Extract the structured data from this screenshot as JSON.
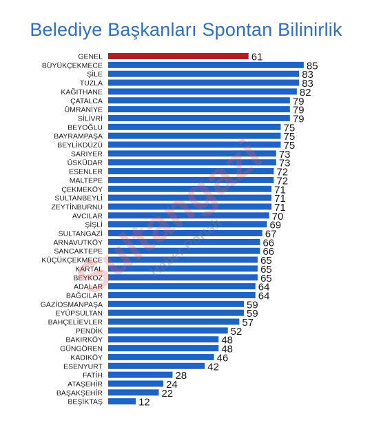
{
  "watermark": {
    "brand": "Sultangazi",
    "tagline": "Haber Portalı"
  },
  "colors": {
    "highlight": "#b01e22",
    "bar": "#1f63c4",
    "title": "#2e6fc0"
  },
  "chart_data": {
    "type": "bar",
    "orientation": "horizontal",
    "title": "Belediye Başkanları Spontan Bilinirlik",
    "xlabel": "",
    "ylabel": "",
    "xlim": [
      0,
      100
    ],
    "grid": false,
    "categories": [
      "GENEL",
      "BÜYÜKÇEKMECE",
      "ŞİLE",
      "TUZLA",
      "KAĞITHANE",
      "ÇATALCA",
      "ÜMRANİYE",
      "SİLİVRİ",
      "BEYOĞLU",
      "BAYRAMPAŞA",
      "BEYLİKDÜZÜ",
      "SARIYER",
      "ÜSKÜDAR",
      "ESENLER",
      "MALTEPE",
      "ÇEKMEKÖY",
      "SULTANBEYLİ",
      "ZEYTİNBURNU",
      "AVCILAR",
      "ŞİŞLİ",
      "SULTANGAZİ",
      "ARNAVUTKÖY",
      "SANCAKTEPE",
      "KÜÇÜKÇEKMECE",
      "KARTAL",
      "BEYKOZ",
      "ADALAR",
      "BAĞCILAR",
      "GAZİOSMANPAŞA",
      "EYÜPSULTAN",
      "BAHÇELİEVLER",
      "PENDİK",
      "BAKIRKÖY",
      "GÜNGÖREN",
      "KADIKÖY",
      "ESENYURT",
      "FATİH",
      "ATAŞEHİR",
      "BAŞAKŞEHİR",
      "BEŞİKTAŞ"
    ],
    "values": [
      61,
      85,
      83,
      83,
      82,
      79,
      79,
      79,
      75,
      75,
      75,
      73,
      73,
      72,
      72,
      71,
      71,
      71,
      70,
      69,
      67,
      66,
      66,
      65,
      65,
      65,
      64,
      64,
      59,
      59,
      57,
      52,
      48,
      48,
      46,
      42,
      28,
      24,
      22,
      12
    ],
    "highlight_index": 0
  }
}
